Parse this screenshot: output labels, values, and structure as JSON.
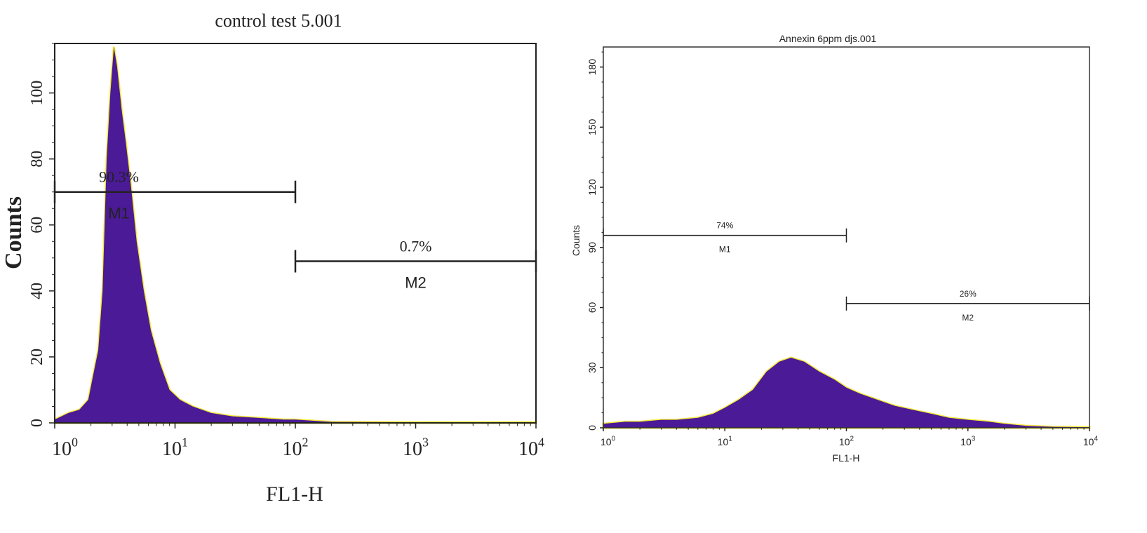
{
  "chart_data": [
    {
      "type": "area",
      "title": "control test 5.001",
      "xlabel": "FL1-H",
      "ylabel": "Counts",
      "xscale": "log",
      "xlim": [
        1,
        10000
      ],
      "ylim": [
        0,
        115
      ],
      "x_ticks": [
        {
          "base": "10",
          "exp": "0"
        },
        {
          "base": "10",
          "exp": "1"
        },
        {
          "base": "10",
          "exp": "2"
        },
        {
          "base": "10",
          "exp": "3"
        },
        {
          "base": "10",
          "exp": "4"
        }
      ],
      "y_ticks": [
        "0",
        "20",
        "40",
        "60",
        "80",
        "100"
      ],
      "y_tick_values": [
        0,
        20,
        40,
        60,
        80,
        100
      ],
      "fill_color": "#4b1a96",
      "edge_color": "#f5e93a",
      "series": [
        {
          "x": [
            1,
            1.3,
            1.6,
            1.9,
            2.1,
            2.3,
            2.5,
            2.7,
            2.9,
            3.1,
            3.3,
            3.6,
            3.9,
            4.3,
            4.8,
            5.5,
            6.3,
            7.5,
            9,
            11,
            14,
            20,
            30,
            50,
            80,
            100,
            200,
            1000,
            10000
          ],
          "values": [
            1,
            3,
            4,
            7,
            15,
            22,
            40,
            80,
            100,
            114,
            108,
            95,
            85,
            72,
            55,
            40,
            28,
            18,
            10,
            7,
            5,
            3,
            2,
            1.5,
            1,
            1,
            0.3,
            0.2,
            0.2
          ]
        }
      ],
      "markers": [
        {
          "name": "M1",
          "percent": "90.3%",
          "x_range": [
            1,
            100
          ],
          "y": 70
        },
        {
          "name": "M2",
          "percent": "0.7%",
          "x_range": [
            100,
            10000
          ],
          "y": 49
        }
      ]
    },
    {
      "type": "area",
      "title": "Annexin 6ppm djs.001",
      "xlabel": "FL1-H",
      "ylabel": "Counts",
      "xscale": "log",
      "xlim": [
        1,
        10000
      ],
      "ylim": [
        0,
        190
      ],
      "x_ticks": [
        {
          "base": "10",
          "exp": "0"
        },
        {
          "base": "10",
          "exp": "1"
        },
        {
          "base": "10",
          "exp": "2"
        },
        {
          "base": "10",
          "exp": "3"
        },
        {
          "base": "10",
          "exp": "4"
        }
      ],
      "y_ticks": [
        "0",
        "30",
        "60",
        "90",
        "120",
        "150",
        "180"
      ],
      "y_tick_values": [
        0,
        30,
        60,
        90,
        120,
        150,
        180
      ],
      "fill_color": "#4b1a96",
      "edge_color": "#f5e93a",
      "series": [
        {
          "x": [
            1,
            1.5,
            2,
            3,
            4,
            6,
            8,
            10,
            13,
            17,
            22,
            28,
            35,
            45,
            60,
            80,
            100,
            130,
            180,
            250,
            350,
            500,
            700,
            1000,
            1500,
            2000,
            3000,
            5000,
            10000
          ],
          "values": [
            2,
            3,
            3,
            4,
            4,
            5,
            7,
            10,
            14,
            19,
            28,
            33,
            35,
            33,
            28,
            24,
            20,
            17,
            14,
            11,
            9,
            7,
            5,
            4,
            3,
            2,
            1,
            0.5,
            0.3
          ]
        }
      ],
      "markers": [
        {
          "name": "M1",
          "percent": "74%",
          "x_range": [
            1,
            100
          ],
          "y": 96
        },
        {
          "name": "M2",
          "percent": "26%",
          "x_range": [
            100,
            10000
          ],
          "y": 62
        }
      ]
    }
  ]
}
